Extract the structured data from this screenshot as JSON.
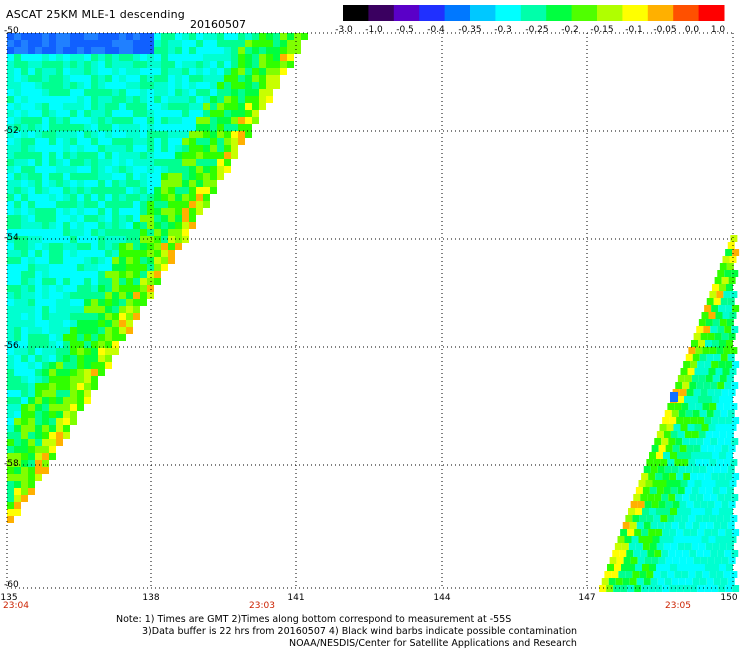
{
  "header": {
    "title": "ASCAT 25KM MLE-1 descending",
    "date": "20160507"
  },
  "colorbar": {
    "labels": [
      "-3.0",
      "-1.0",
      "-0.5",
      "-0.4",
      "-0.35",
      "-0.3",
      "-0.25",
      "-0.2",
      "-0.15",
      "-0.1",
      "-0.05",
      "0.0",
      "1.0"
    ],
    "colors": [
      "#000000",
      "#3a0060",
      "#5a00c8",
      "#2030ff",
      "#0078ff",
      "#00c8ff",
      "#00ffff",
      "#00ffaa",
      "#00ff40",
      "#50ff00",
      "#b0ff00",
      "#ffff00",
      "#ffb000",
      "#ff5000",
      "#ff0000"
    ]
  },
  "map": {
    "lon_labels": [
      "135",
      "138",
      "141",
      "144",
      "147",
      "150"
    ],
    "lat_labels": [
      "-50",
      "-52",
      "-54",
      "-56",
      "-58",
      "-60"
    ],
    "time_labels": [
      "23:04",
      "23:03",
      "23:05"
    ]
  },
  "notes": {
    "line1": "Note: 1) Times are GMT 2)Times along bottom correspond to measurement at -55S",
    "line2": "3)Data buffer is 22 hrs from 20160507 4) Black wind barbs indicate possible contamination",
    "line3": "NOAA/NESDIS/Center for Satellite Applications and Research"
  }
}
